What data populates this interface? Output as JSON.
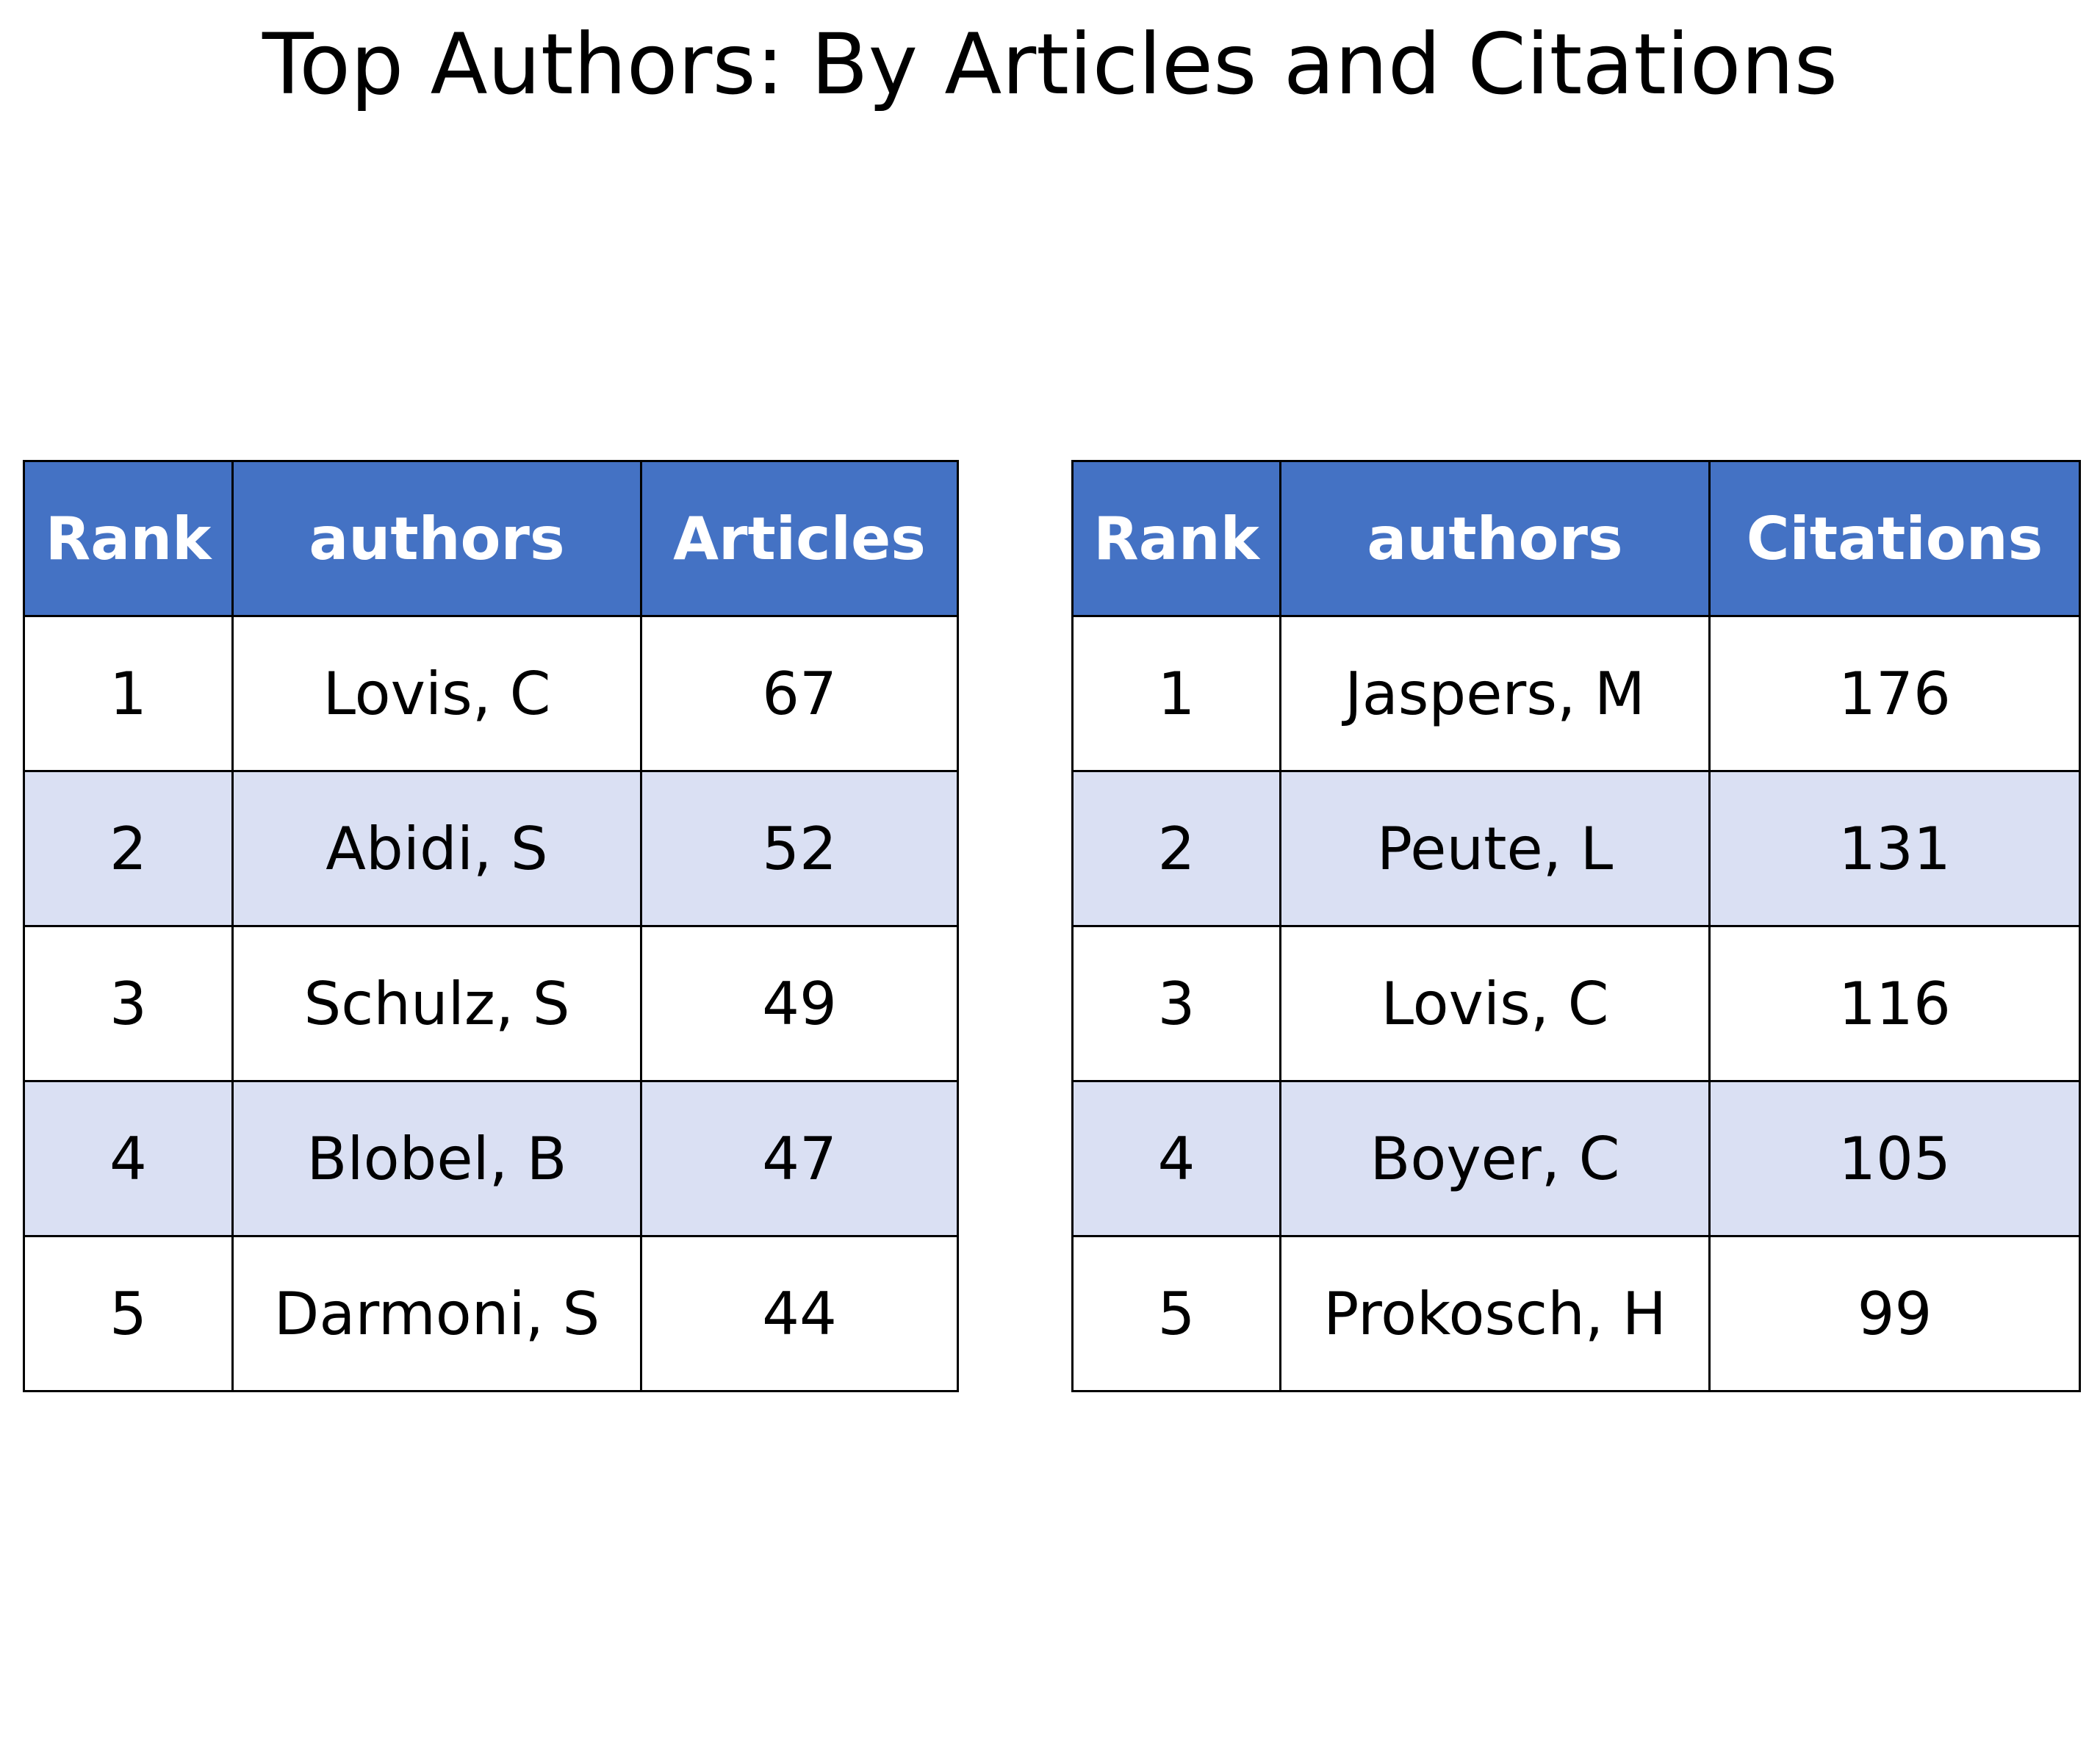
{
  "page": {
    "title": "Top Authors: By Articles and Citations"
  },
  "colors": {
    "header_fill": "#4472c4",
    "header_text": "#ffffff",
    "row_alt_fill": "#dae0f3",
    "row_fill": "#ffffff",
    "border": "#000000"
  },
  "chart_data": [
    {
      "type": "table",
      "columns": [
        "Rank",
        "authors",
        "Articles"
      ],
      "rows": [
        [
          "1",
          "Lovis, C",
          "67"
        ],
        [
          "2",
          "Abidi, S",
          "52"
        ],
        [
          "3",
          "Schulz, S",
          "49"
        ],
        [
          "4",
          "Blobel, B",
          "47"
        ],
        [
          "5",
          "Darmoni, S",
          "44"
        ]
      ]
    },
    {
      "type": "table",
      "columns": [
        "Rank",
        "authors",
        "Citations"
      ],
      "rows": [
        [
          "1",
          "Jaspers, M",
          "176"
        ],
        [
          "2",
          "Peute, L",
          "131"
        ],
        [
          "3",
          "Lovis, C",
          "116"
        ],
        [
          "4",
          "Boyer, C",
          "105"
        ],
        [
          "5",
          "Prokosch, H",
          "99"
        ]
      ]
    }
  ]
}
